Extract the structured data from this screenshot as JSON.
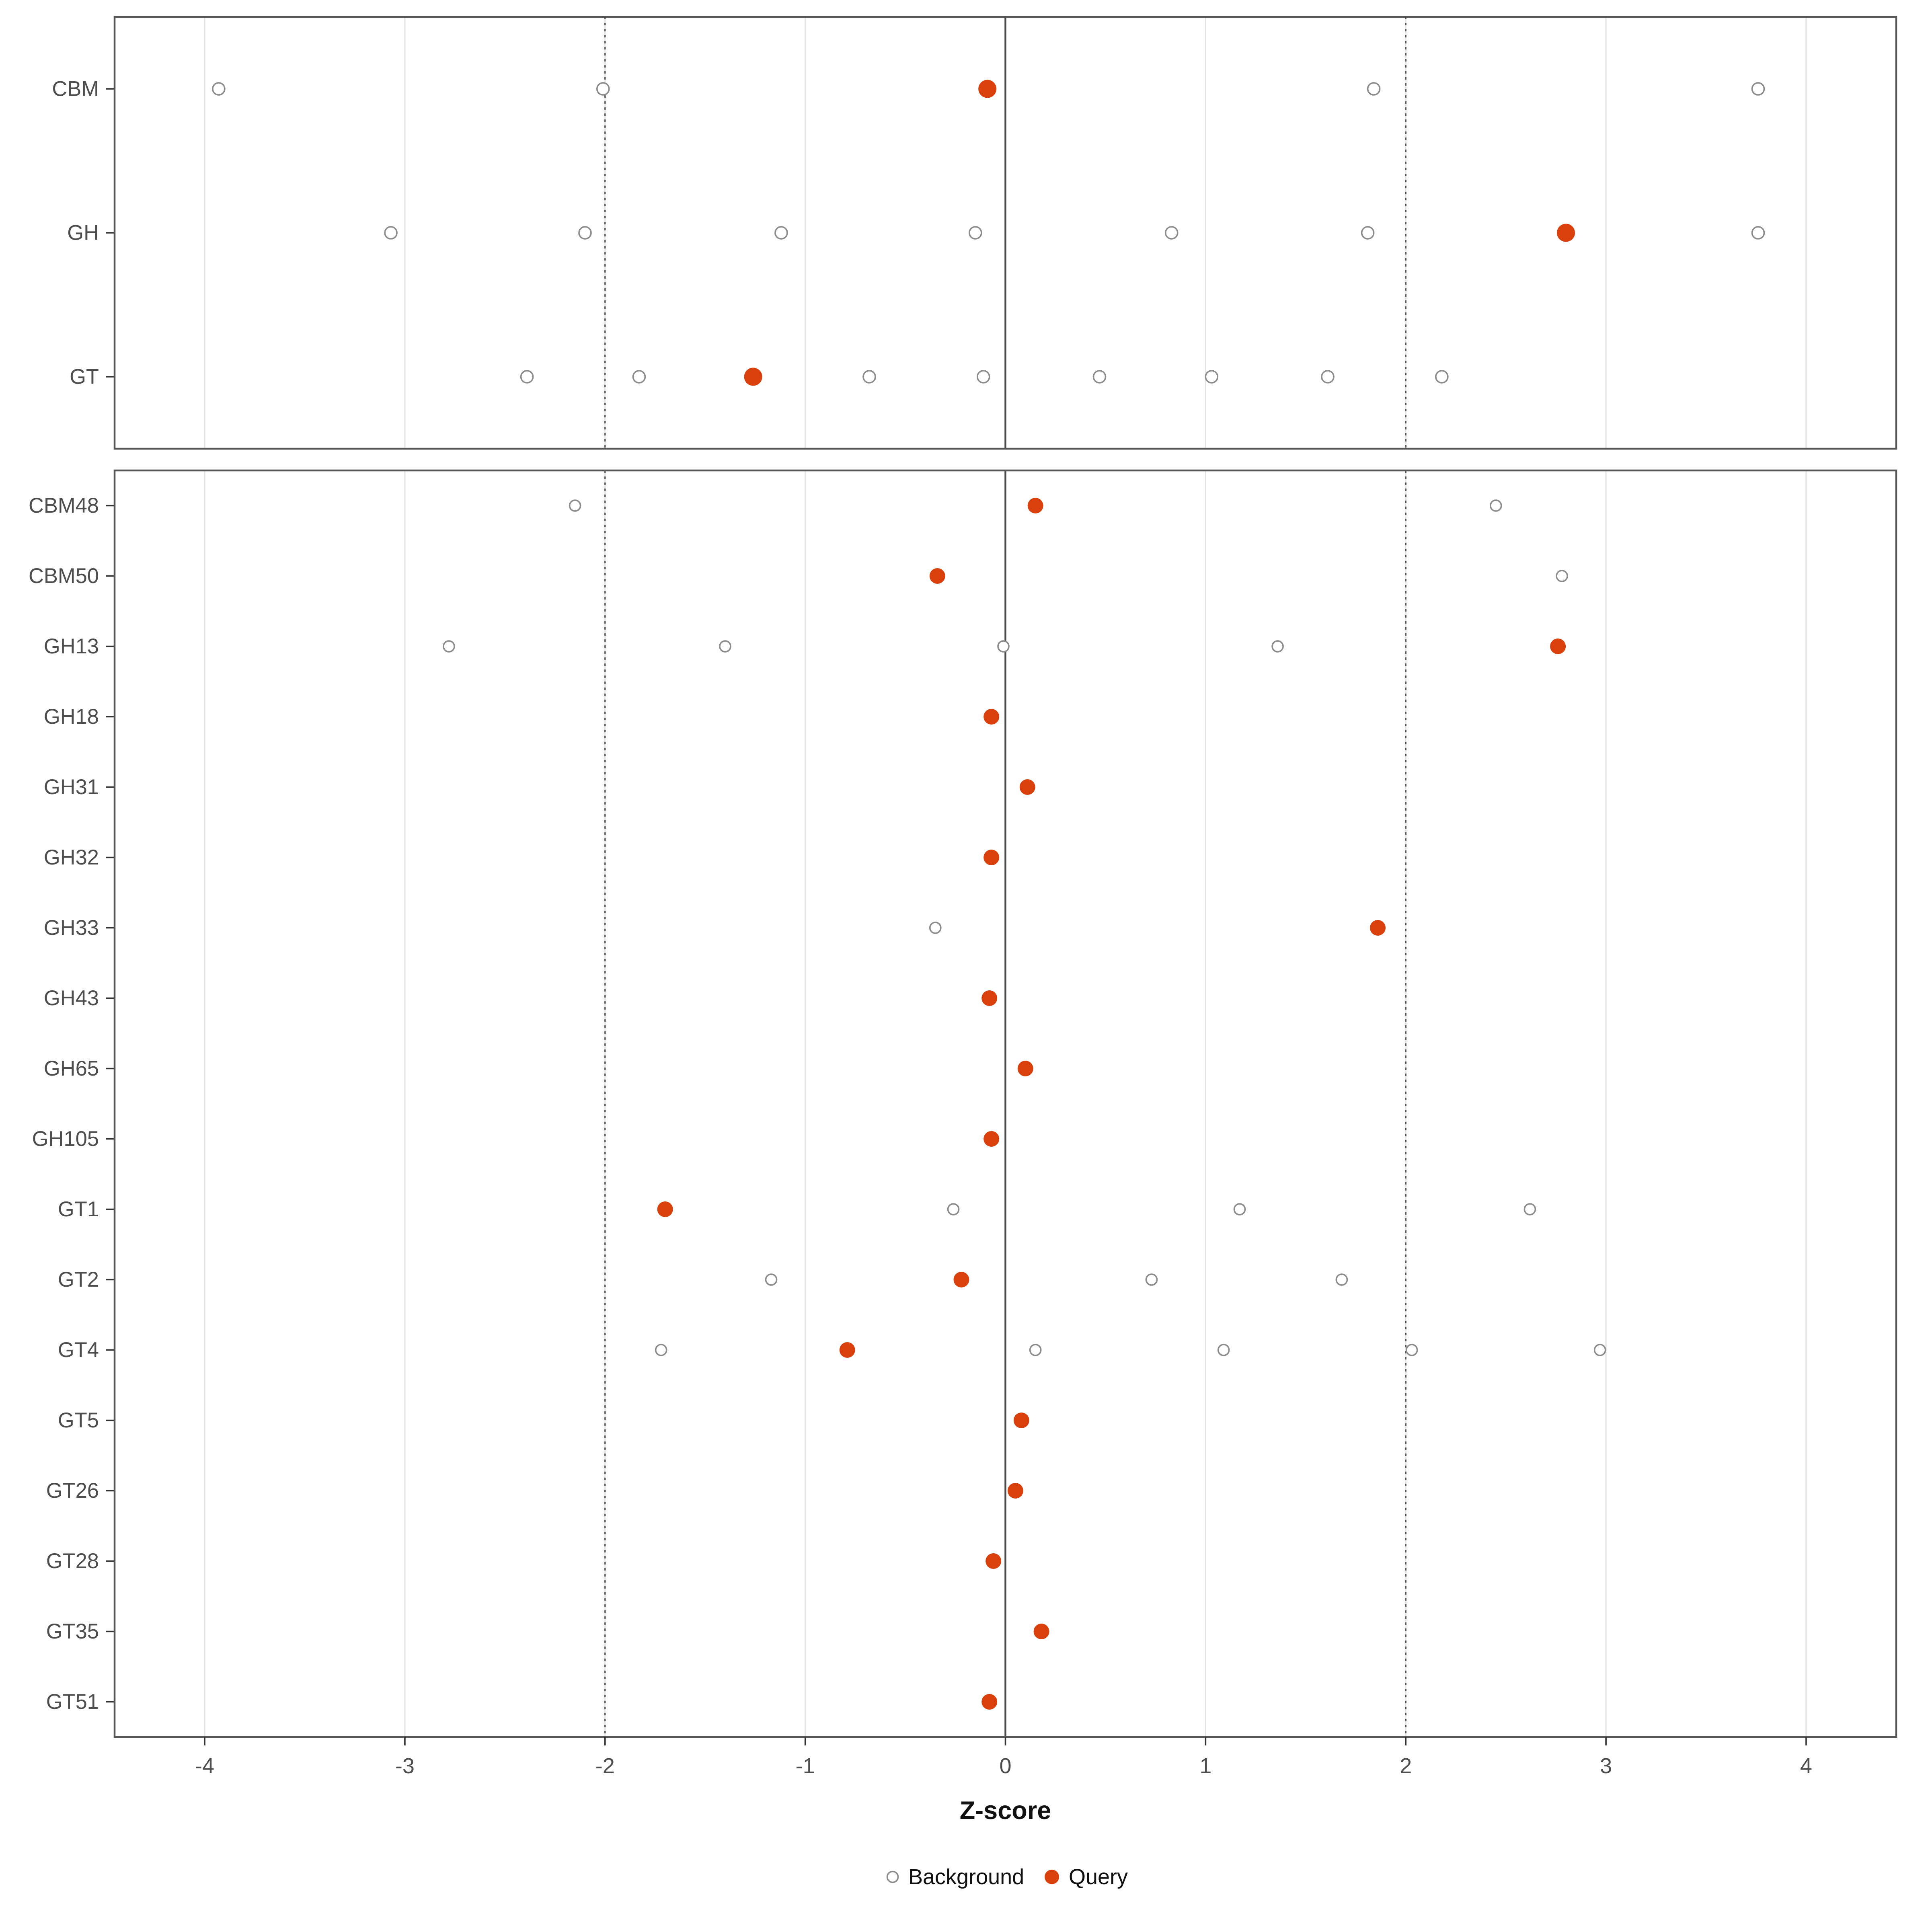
{
  "chart_data": {
    "type": "scatter",
    "title": "",
    "xlabel": "Z-score",
    "ylabel": "",
    "x_ticks": [
      -4,
      -3,
      -2,
      -1,
      0,
      1,
      2,
      3,
      4
    ],
    "x_domain": [
      -4.45,
      4.45
    ],
    "reference_lines": {
      "solid": 0,
      "dotted": [
        -2,
        2
      ]
    },
    "legend": [
      {
        "label": "Background",
        "style": "open"
      },
      {
        "label": "Query",
        "style": "filled"
      }
    ],
    "colors": {
      "query": "#D9400C",
      "background_fill": "#FFFFFF",
      "background_stroke": "#8C8C8C",
      "grid": "#E4E4E4",
      "ref_line": "#555555",
      "zero_line": "#4A4A4A",
      "axis_text": "#4D4D4D",
      "panel_border": "#565656",
      "title_text": "#111111"
    },
    "panels": [
      {
        "name": "family-summary",
        "rows": [
          {
            "label": "CBM",
            "background": [
              -3.93,
              -2.01,
              1.84,
              3.76
            ],
            "query": -0.09
          },
          {
            "label": "GH",
            "background": [
              -3.07,
              -2.1,
              -1.12,
              -0.15,
              0.83,
              1.81,
              3.76
            ],
            "query": 2.8
          },
          {
            "label": "GT",
            "background": [
              -2.39,
              -1.83,
              -0.68,
              -0.11,
              0.47,
              1.03,
              1.61,
              2.18
            ],
            "query": -1.26
          }
        ]
      },
      {
        "name": "subfamily-detail",
        "rows": [
          {
            "label": "CBM48",
            "background": [
              -2.15,
              2.45
            ],
            "query": 0.15
          },
          {
            "label": "CBM50",
            "background": [
              2.78
            ],
            "query": -0.34
          },
          {
            "label": "GH13",
            "background": [
              -2.78,
              -1.4,
              -0.01,
              1.36
            ],
            "query": 2.76
          },
          {
            "label": "GH18",
            "background": [],
            "query": -0.07
          },
          {
            "label": "GH31",
            "background": [],
            "query": 0.11
          },
          {
            "label": "GH32",
            "background": [],
            "query": -0.07
          },
          {
            "label": "GH33",
            "background": [
              -0.35
            ],
            "query": 1.86
          },
          {
            "label": "GH43",
            "background": [],
            "query": -0.08
          },
          {
            "label": "GH65",
            "background": [],
            "query": 0.1
          },
          {
            "label": "GH105",
            "background": [],
            "query": -0.07
          },
          {
            "label": "GT1",
            "background": [
              -0.26,
              1.17,
              2.62
            ],
            "query": -1.7
          },
          {
            "label": "GT2",
            "background": [
              -1.17,
              0.73,
              1.68
            ],
            "query": -0.22
          },
          {
            "label": "GT4",
            "background": [
              -1.72,
              0.15,
              1.09,
              2.03,
              2.97
            ],
            "query": -0.79
          },
          {
            "label": "GT5",
            "background": [],
            "query": 0.08
          },
          {
            "label": "GT26",
            "background": [],
            "query": 0.05
          },
          {
            "label": "GT28",
            "background": [],
            "query": -0.06
          },
          {
            "label": "GT35",
            "background": [],
            "query": 0.18
          },
          {
            "label": "GT51",
            "background": [],
            "query": -0.08
          }
        ]
      }
    ]
  }
}
